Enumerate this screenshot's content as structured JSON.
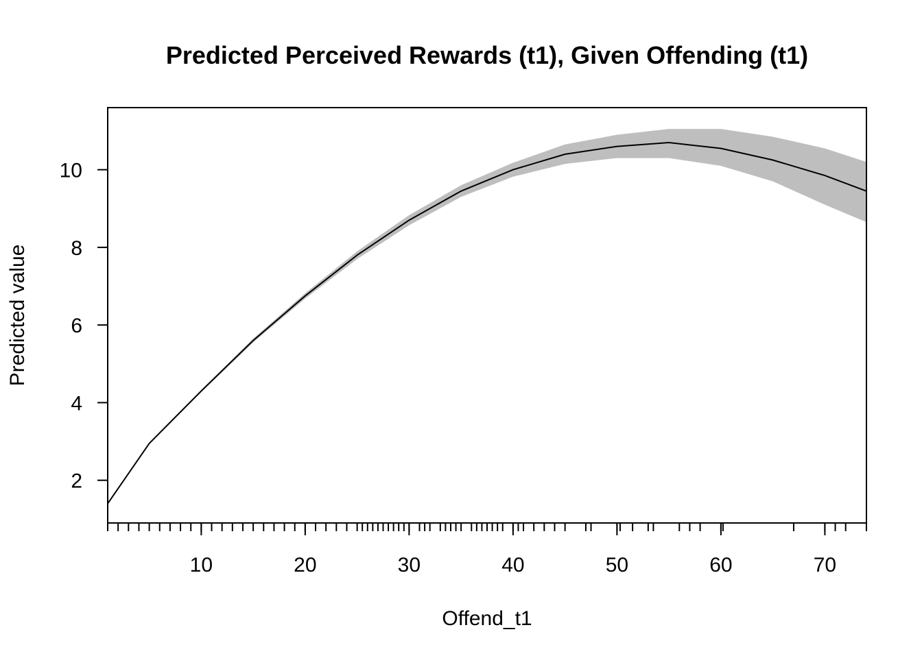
{
  "chart_data": {
    "type": "line",
    "title": "Predicted Perceived Rewards (t1), Given Offending (t1)",
    "xlabel": "Offend_t1",
    "ylabel": "Predicted value",
    "xlim": [
      1,
      74
    ],
    "ylim": [
      0.9,
      11.6
    ],
    "x_ticks": [
      10,
      20,
      30,
      40,
      50,
      60,
      70
    ],
    "y_ticks": [
      2,
      4,
      6,
      8,
      10
    ],
    "grid": false,
    "legend": "none",
    "series": [
      {
        "x": [
          1,
          5,
          10,
          15,
          20,
          25,
          30,
          35,
          40,
          45,
          50,
          55,
          60,
          65,
          70,
          74
        ],
        "y": [
          1.4,
          2.95,
          4.3,
          5.6,
          6.75,
          7.8,
          8.7,
          9.45,
          10.0,
          10.4,
          10.6,
          10.7,
          10.55,
          10.25,
          9.85,
          9.45
        ],
        "lower": [
          1.4,
          2.93,
          4.27,
          5.55,
          6.68,
          7.7,
          8.57,
          9.3,
          9.82,
          10.15,
          10.3,
          10.3,
          10.1,
          9.7,
          9.1,
          8.65
        ],
        "upper": [
          1.4,
          2.97,
          4.33,
          5.65,
          6.82,
          7.9,
          8.83,
          9.6,
          10.18,
          10.65,
          10.9,
          11.05,
          11.05,
          10.85,
          10.55,
          10.2
        ]
      }
    ],
    "rug_x": [
      1,
      2,
      3,
      4,
      5,
      6,
      7,
      8,
      9,
      10,
      11,
      12,
      13,
      14,
      15,
      16,
      17,
      18,
      19,
      20,
      21,
      22,
      23,
      24,
      25,
      25.5,
      26,
      26.5,
      27,
      27.5,
      28,
      28.5,
      29,
      29.5,
      30,
      31,
      31.5,
      32,
      33,
      33.5,
      34,
      34.5,
      35,
      36,
      36.5,
      37,
      37.5,
      38,
      38.5,
      39,
      40,
      40.5,
      41,
      42,
      43,
      44,
      45,
      47,
      47.5,
      50,
      50.3,
      51.5,
      53,
      53.5,
      56,
      57,
      58,
      60,
      60.2,
      67,
      70,
      71,
      72,
      74
    ],
    "colors": {
      "line": "#000000",
      "band": "#bebebe",
      "frame": "#000000"
    }
  }
}
